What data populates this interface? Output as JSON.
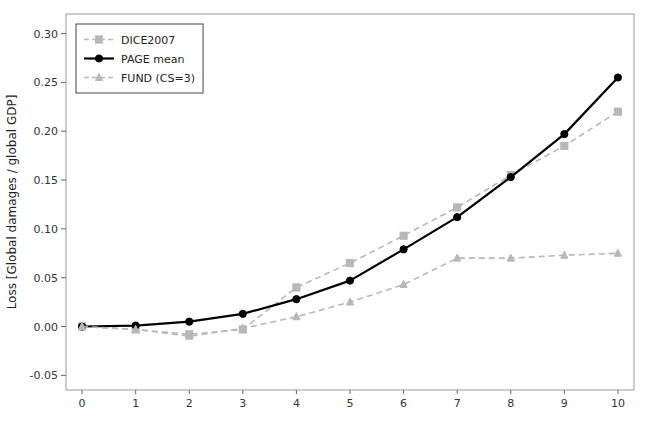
{
  "chart_data": {
    "type": "line",
    "x": [
      0,
      1,
      2,
      3,
      4,
      5,
      6,
      7,
      8,
      9,
      10
    ],
    "series": [
      {
        "name": "DICE2007",
        "color": "#b8b8b8",
        "marker": "square",
        "line_style": "dashed",
        "values": [
          0.0,
          -0.003,
          -0.008,
          -0.003,
          0.04,
          0.065,
          0.093,
          0.122,
          0.155,
          0.185,
          0.22
        ]
      },
      {
        "name": "PAGE mean",
        "color": "#000000",
        "marker": "circle",
        "line_style": "solid",
        "values": [
          0.0,
          0.001,
          0.005,
          0.013,
          0.028,
          0.047,
          0.079,
          0.112,
          0.153,
          0.197,
          0.255
        ]
      },
      {
        "name": "FUND (CS=3)",
        "color": "#b8b8b8",
        "marker": "triangle",
        "line_style": "dashed",
        "values": [
          0.0,
          -0.003,
          -0.01,
          -0.002,
          0.01,
          0.025,
          0.043,
          0.07,
          0.07,
          0.073,
          0.075
        ]
      }
    ],
    "ylabel": "Loss [Global damages / global GDP]",
    "xlim": [
      -0.3,
      10.3
    ],
    "ylim": [
      -0.065,
      0.32
    ],
    "xticks": [
      0,
      1,
      2,
      3,
      4,
      5,
      6,
      7,
      8,
      9,
      10
    ],
    "yticks": [
      -0.05,
      {
        "value": 0.0,
        "label": "0.00"
      },
      0.05,
      {
        "value": 0.1,
        "label": "0.10"
      },
      0.15,
      {
        "value": 0.2,
        "label": "0.20"
      },
      0.25,
      {
        "value": 0.3,
        "label": "0.30"
      }
    ],
    "grid": false,
    "legend": "upper left"
  }
}
